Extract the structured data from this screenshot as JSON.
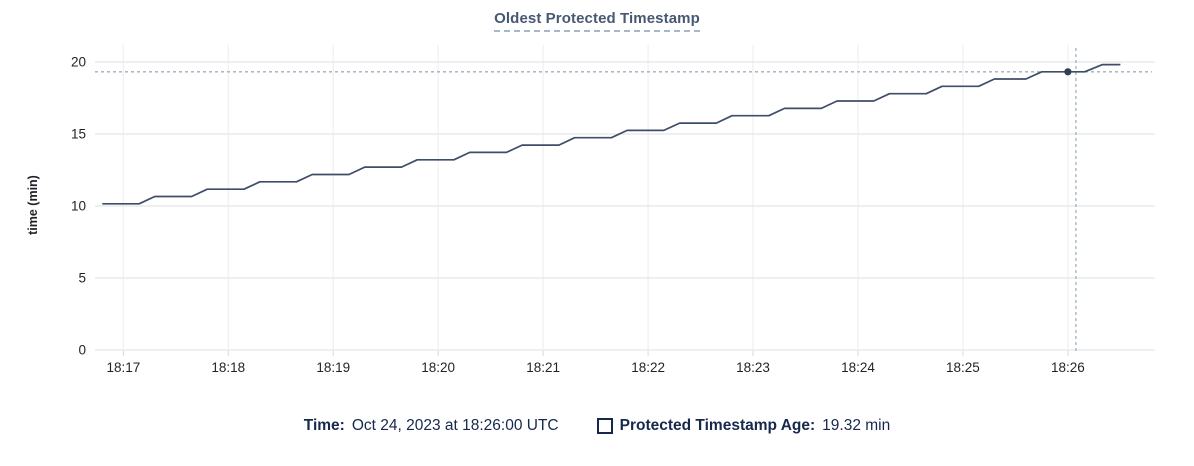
{
  "title": "Oldest Protected Timestamp",
  "y_axis_label": "time (min)",
  "tooltip": {
    "time_label": "Time:",
    "time_value": "Oct 24, 2023 at 18:26:00 UTC",
    "series_label": "Protected Timestamp Age:",
    "series_value": "19.32 min"
  },
  "colors": {
    "line": "#3e4d68",
    "dot": "#303e58",
    "grid_h": "#e9eaec",
    "grid_v": "#f2f2f4",
    "axis": "#dcdee1",
    "crosshair": "#9fb1c1",
    "tick_text": "#1f2227",
    "title_text": "#475872",
    "legend_text": "#16294c"
  },
  "chart_data": {
    "type": "line",
    "title": "Oldest Protected Timestamp",
    "xlabel": "",
    "ylabel": "time (min)",
    "ylim": [
      0,
      20
    ],
    "y_ticks": [
      0,
      5,
      10,
      15,
      20
    ],
    "x_ticks": [
      "18:17",
      "18:18",
      "18:19",
      "18:20",
      "18:21",
      "18:22",
      "18:23",
      "18:24",
      "18:25",
      "18:26"
    ],
    "x_unit": "minutes after 18:17",
    "x_range": [
      -0.27,
      9.83
    ],
    "grid": true,
    "legend_position": "bottom",
    "series": [
      {
        "name": "Protected Timestamp Age",
        "points": [
          [
            -0.2,
            10.15
          ],
          [
            0.15,
            10.15
          ],
          [
            0.3,
            10.66
          ],
          [
            0.65,
            10.66
          ],
          [
            0.8,
            11.17
          ],
          [
            1.15,
            11.17
          ],
          [
            1.3,
            11.68
          ],
          [
            1.65,
            11.68
          ],
          [
            1.8,
            12.19
          ],
          [
            2.15,
            12.19
          ],
          [
            2.3,
            12.7
          ],
          [
            2.65,
            12.7
          ],
          [
            2.8,
            13.21
          ],
          [
            3.15,
            13.21
          ],
          [
            3.3,
            13.72
          ],
          [
            3.65,
            13.72
          ],
          [
            3.8,
            14.23
          ],
          [
            4.15,
            14.23
          ],
          [
            4.3,
            14.74
          ],
          [
            4.65,
            14.74
          ],
          [
            4.8,
            15.25
          ],
          [
            5.15,
            15.25
          ],
          [
            5.3,
            15.76
          ],
          [
            5.65,
            15.76
          ],
          [
            5.8,
            16.27
          ],
          [
            6.15,
            16.27
          ],
          [
            6.3,
            16.78
          ],
          [
            6.65,
            16.78
          ],
          [
            6.8,
            17.29
          ],
          [
            7.15,
            17.29
          ],
          [
            7.3,
            17.8
          ],
          [
            7.65,
            17.8
          ],
          [
            7.8,
            18.31
          ],
          [
            8.15,
            18.31
          ],
          [
            8.3,
            18.82
          ],
          [
            8.6,
            18.82
          ],
          [
            8.75,
            19.32
          ],
          [
            9.16,
            19.32
          ],
          [
            9.33,
            19.82
          ],
          [
            9.5,
            19.82
          ]
        ]
      }
    ],
    "hover_point": {
      "time": "18:26:00",
      "t_min": 9.0,
      "value": 19.32
    }
  }
}
